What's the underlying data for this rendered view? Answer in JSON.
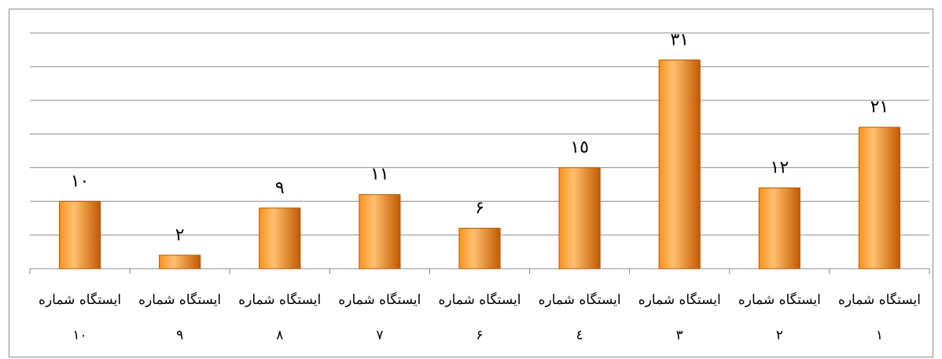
{
  "chart_data": {
    "type": "bar",
    "categories": [
      [
        "ایستگاه شماره",
        "١"
      ],
      [
        "ایستگاه شماره",
        "٢"
      ],
      [
        "ایستگاه شماره",
        "٣"
      ],
      [
        "ایستگاه شماره",
        "٤"
      ],
      [
        "ایستگاه شماره",
        "۶"
      ],
      [
        "ایستگاه شماره",
        "٧"
      ],
      [
        "ایستگاه شماره",
        "٨"
      ],
      [
        "ایستگاه شماره",
        "٩"
      ],
      [
        "ایستگاه شماره",
        "١٠"
      ]
    ],
    "values": [
      21,
      12,
      31,
      15,
      6,
      11,
      9,
      2,
      10
    ],
    "data_labels": [
      "٢١",
      "١٢",
      "٣١",
      "١٥",
      "۶",
      "١١",
      "٩",
      "٢",
      "١٠"
    ],
    "category_order": "right-to-left",
    "ylim": [
      0,
      35
    ],
    "y_gridline_step": 5,
    "grid": true,
    "legend": "none",
    "colors": {
      "bar_fill_light": "#ffc070",
      "bar_fill_mid": "#f7941d",
      "bar_fill_dark": "#c25a00",
      "bar_edge": "#b35400",
      "gridline": "#8c8c8c",
      "axis": "#8c8c8c"
    }
  }
}
